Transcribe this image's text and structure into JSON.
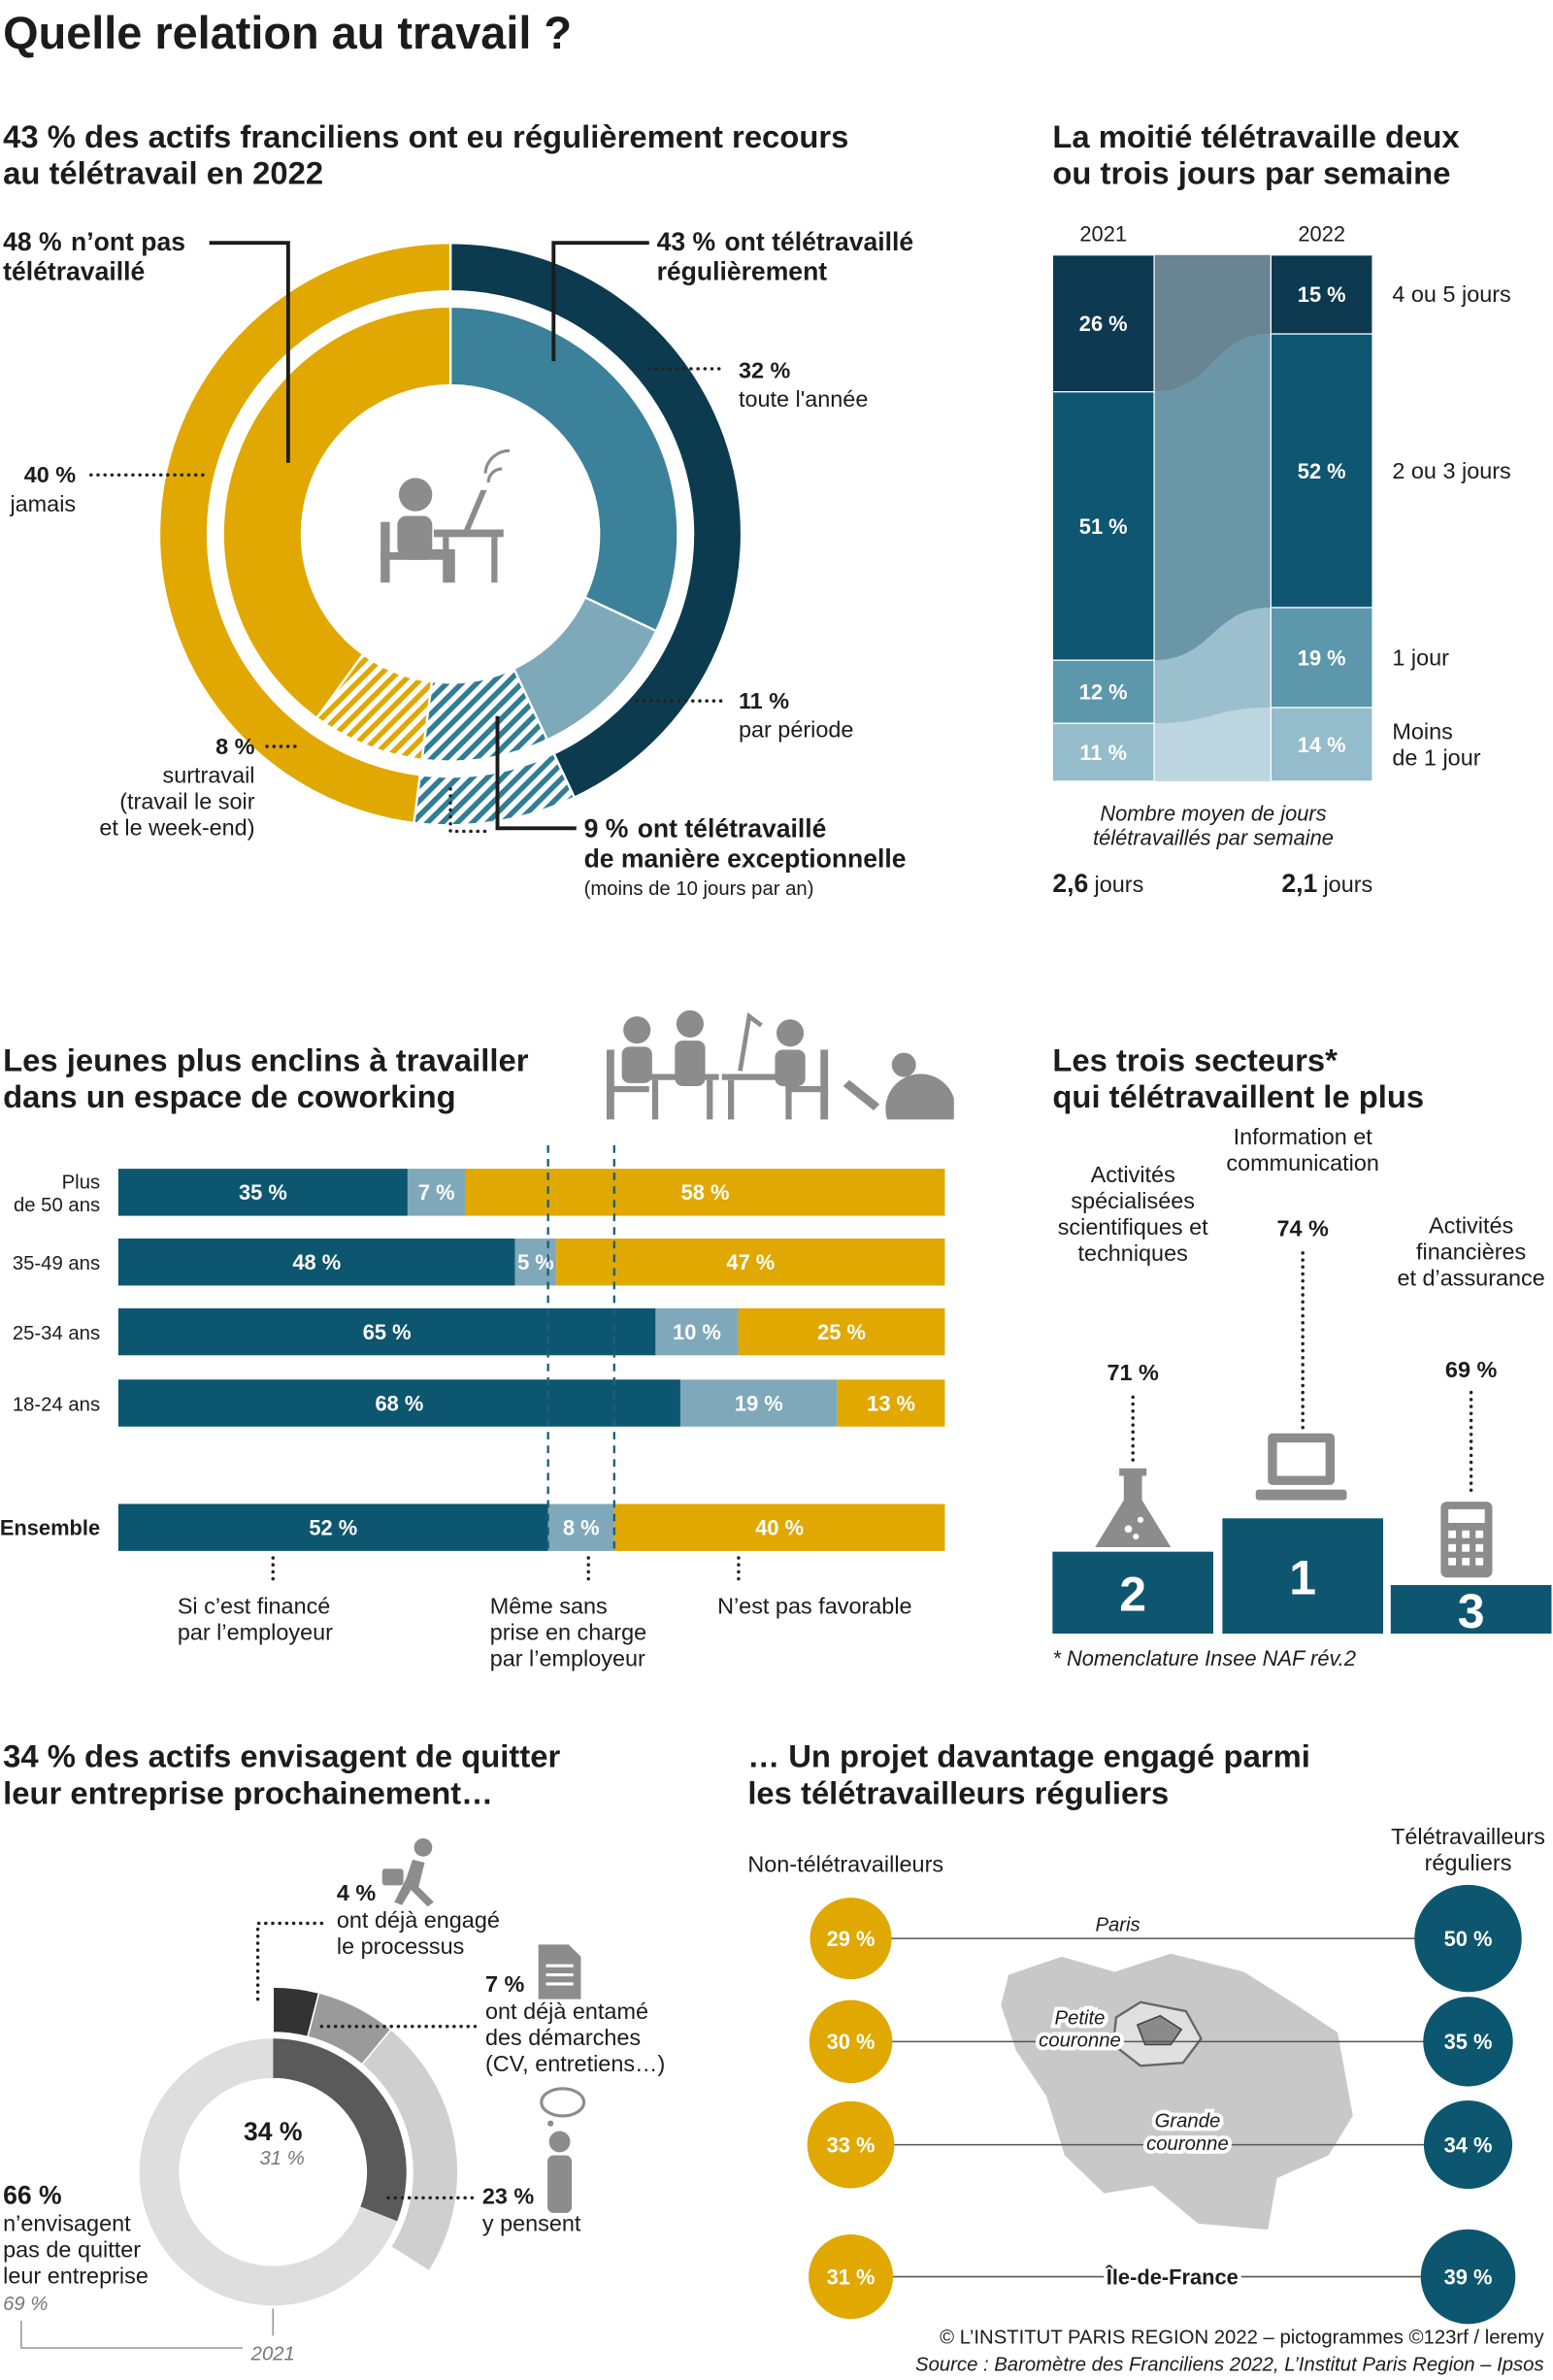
{
  "title": "Quelle relation au travail ?",
  "chart_data": [
    {
      "type": "double-donut",
      "title": "43 % des actifs franciliens ont eu régulièrement recours\nau télétravail en 2022",
      "outer": {
        "names": [
          "ont télétravaillé\nrégulièrement",
          "ont télétravaillé\nde manière exceptionnelle",
          "n’ont pas\ntélétravaillé"
        ],
        "values": [
          43,
          9,
          48
        ],
        "value_labels": [
          "43 %",
          "9 %",
          "48 %"
        ],
        "colors": [
          "#0c3b50",
          "#2f7d96",
          "#e0a800"
        ],
        "hatched": [
          false,
          true,
          false
        ]
      },
      "inner": {
        "names": [
          "toute l'année",
          "par période",
          null,
          "surtravail\n(travail le soir\net le week-end)",
          "jamais"
        ],
        "values": [
          32,
          11,
          9,
          8,
          40
        ],
        "value_labels": [
          "32 %",
          "11 %",
          null,
          "8 %",
          "40 %"
        ],
        "colors": [
          "#3b8199",
          "#7ea9bb",
          "#2f7d96",
          "#e0a800",
          "#e0a800"
        ],
        "hatched": [
          false,
          false,
          true,
          true,
          false
        ]
      },
      "note": "(moins de 10 jours par an)"
    },
    {
      "type": "stacked-flow",
      "title": "La moitié télétravaille deux\nou trois jours par semaine",
      "categories": [
        "2021",
        "2022"
      ],
      "ylim": [
        0,
        100
      ],
      "series": [
        {
          "name": "4 ou 5 jours",
          "color": "#0d3a50",
          "values": [
            26,
            15
          ],
          "value_labels": [
            "26 %",
            "15 %"
          ]
        },
        {
          "name": "2 ou 3 jours",
          "color": "#0f5672",
          "values": [
            51,
            52
          ],
          "value_labels": [
            "51 %",
            "52 %"
          ]
        },
        {
          "name": "1 jour",
          "color": "#5d97ac",
          "values": [
            12,
            19
          ],
          "value_labels": [
            "12 %",
            "19 %"
          ]
        },
        {
          "name": "Moins\nde 1 jour",
          "color": "#94bccb",
          "values": [
            11,
            14
          ],
          "value_labels": [
            "11 %",
            "14 %"
          ]
        }
      ],
      "note": "Nombre moyen de jours\ntélétravaillés par semaine",
      "averages": [
        2.6,
        2.1
      ],
      "average_labels": [
        "2,6",
        "2,1"
      ],
      "average_unit": "jours"
    },
    {
      "type": "hbar-stacked",
      "title": "Les jeunes plus enclins à travailler\ndans un espace de coworking",
      "categories": [
        "Plus\nde 50 ans",
        "35-49 ans",
        "25-34 ans",
        "18-24 ans",
        "Ensemble"
      ],
      "xlim": [
        0,
        100
      ],
      "series": [
        {
          "name": "Si c’est financé\npar l’employeur",
          "color": "#0d5670",
          "values": [
            35,
            48,
            65,
            68,
            52
          ],
          "value_labels": [
            "35 %",
            "48 %",
            "65 %",
            "68 %",
            "52 %"
          ]
        },
        {
          "name": "Même sans\nprise en charge\npar l’employeur",
          "color": "#7fa9bb",
          "values": [
            7,
            5,
            10,
            19,
            8
          ],
          "value_labels": [
            "7 %",
            "5 %",
            "10 %",
            "19 %",
            "8 %"
          ]
        },
        {
          "name": "N’est pas favorable",
          "color": "#e0a800",
          "values": [
            58,
            47,
            25,
            13,
            40
          ],
          "value_labels": [
            "58 %",
            "47 %",
            "25 %",
            "13 %",
            "40 %"
          ]
        }
      ]
    },
    {
      "type": "podium",
      "title": "Les trois secteurs*\nqui télétravaillent le plus",
      "categories": [
        "Activités\nspécialisées\nscientifiques et\ntechniques",
        "Information et\ncommunication",
        "Activités\nfinancières\net d’assurance"
      ],
      "values": [
        71,
        74,
        69
      ],
      "value_labels": [
        "71 %",
        "74 %",
        "69 %"
      ],
      "ranks": [
        2,
        1,
        3
      ],
      "color": "#0e5670",
      "footnote": "* Nomenclature Insee NAF rév.2"
    },
    {
      "type": "progress-donut",
      "title": "34 % des actifs envisagent de quitter\nleur entreprise prochainement…",
      "series": [
        {
          "name": "ont déjà engagé\nle processus",
          "value": 4,
          "value_label": "4 %",
          "color": "#333333"
        },
        {
          "name": "ont déjà entamé\ndes démarches\n(CV, entretiens…)",
          "value": 7,
          "value_label": "7 %",
          "color": "#9a9a9a"
        },
        {
          "name": "y pensent",
          "value": 23,
          "value_label": "23 %",
          "color": "#cfcfcf"
        }
      ],
      "total": 34,
      "total_label": "34 %",
      "rest": {
        "name": "n’envisagent\npas de quitter\nleur entreprise",
        "value": 66,
        "value_label": "66 %"
      },
      "previous": {
        "name": "2021",
        "value": 31,
        "value_label": "31 %",
        "rest": 69,
        "rest_label": "69 %",
        "color": "#5a5a5a",
        "rest_color": "#dedede"
      }
    },
    {
      "type": "dot-compare",
      "title": "… Un projet davantage engagé parmi\nles télétravailleurs réguliers",
      "categories": [
        "Paris",
        "Petite\ncouronne",
        "Grande\ncouronne",
        "Île-de-France"
      ],
      "series": [
        {
          "name": "Non-télétravailleurs",
          "color": "#e0a800",
          "values": [
            29,
            30,
            33,
            31
          ],
          "value_labels": [
            "29 %",
            "30 %",
            "33 %",
            "31 %"
          ]
        },
        {
          "name": "Télétravailleurs\nréguliers",
          "color": "#0d5670",
          "values": [
            50,
            35,
            34,
            39
          ],
          "value_labels": [
            "50 %",
            "35 %",
            "34 %",
            "39 %"
          ]
        }
      ]
    }
  ],
  "footer": {
    "credit": "© L’INSTITUT PARIS REGION 2022 – pictogrammes ©123rf / leremy",
    "source": "Source : Baromètre des Franciliens 2022, L’Institut Paris Region – Ipsos"
  }
}
